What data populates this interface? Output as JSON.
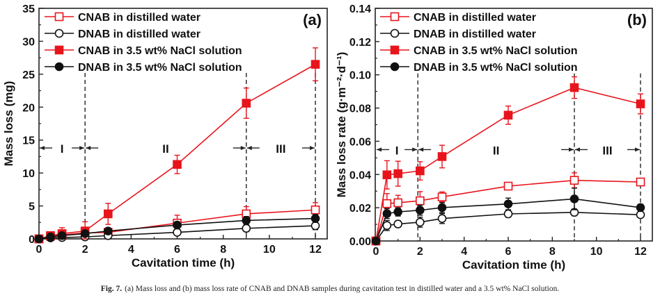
{
  "caption": {
    "label": "Fig. 7.",
    "text": "(a) Mass loss and (b) mass loss rate of CNAB and DNAB samples during cavitation test in distilled water and a 3.5 wt% NaCl solution."
  },
  "colors": {
    "red": "#e8141c",
    "black": "#111111"
  },
  "chart_data": [
    {
      "type": "line",
      "panel_label": "(a)",
      "xlabel": "Cavitation time (h)",
      "ylabel": "Mass loss (mg)",
      "xlim": [
        0,
        12.5
      ],
      "ylim": [
        0,
        35
      ],
      "xticks": [
        0,
        2,
        4,
        6,
        8,
        10,
        12
      ],
      "yticks": [
        0,
        5,
        10,
        15,
        20,
        25,
        30,
        35
      ],
      "ytick_labels": [
        "0",
        "5",
        "10",
        "15",
        "20",
        "25",
        "30",
        "35"
      ],
      "grid": false,
      "legend_position": "top-left",
      "stage_lines_x": [
        2,
        9,
        12
      ],
      "stages": [
        {
          "label": "I",
          "from": 0,
          "to": 2
        },
        {
          "label": "II",
          "from": 2,
          "to": 9
        },
        {
          "label": "III",
          "from": 9,
          "to": 12
        }
      ],
      "stage_arrow_y": 13.8,
      "series": [
        {
          "name": "CNAB in distilled water",
          "color": "#e8141c",
          "marker": "square-open",
          "x": [
            0,
            0.5,
            1,
            2,
            3,
            6,
            9,
            12
          ],
          "y": [
            0,
            0.4,
            0.6,
            0.9,
            1.0,
            2.4,
            3.8,
            4.4
          ],
          "err": [
            0,
            0.3,
            0.4,
            0.5,
            0.4,
            1.2,
            1.1,
            1.1
          ]
        },
        {
          "name": "DNAB in distilled water",
          "color": "#111111",
          "marker": "circle-open",
          "x": [
            0,
            0.5,
            1,
            2,
            3,
            6,
            9,
            12
          ],
          "y": [
            0,
            0.15,
            0.2,
            0.3,
            0.5,
            1.0,
            1.6,
            2.0
          ],
          "err": [
            0,
            0.1,
            0.1,
            0.2,
            0.2,
            0.3,
            0.5,
            0.6
          ]
        },
        {
          "name": "CNAB in 3.5 wt% NaCl solution",
          "color": "#e8141c",
          "marker": "square-filled",
          "x": [
            0,
            0.5,
            1,
            2,
            3,
            6,
            9,
            12
          ],
          "y": [
            0,
            0.5,
            0.8,
            1.2,
            3.8,
            11.3,
            20.6,
            26.5
          ],
          "err": [
            0,
            0.3,
            0.9,
            1.4,
            1.6,
            1.4,
            2.3,
            2.5
          ]
        },
        {
          "name": "DNAB in 3.5 wt% NaCl solution",
          "color": "#111111",
          "marker": "circle-filled",
          "x": [
            0,
            0.5,
            1,
            2,
            3,
            6,
            9,
            12
          ],
          "y": [
            0,
            0.3,
            0.5,
            0.8,
            1.2,
            2.1,
            2.8,
            3.1
          ],
          "err": [
            0,
            0.2,
            0.2,
            0.3,
            0.3,
            0.5,
            0.6,
            0.6
          ]
        }
      ]
    },
    {
      "type": "line",
      "panel_label": "(b)",
      "xlabel": "Cavitation time (h)",
      "ylabel": "Mass loss rate (g·m⁻²·d⁻¹)",
      "xlim": [
        0,
        12.5
      ],
      "ylim": [
        0,
        0.14
      ],
      "xticks": [
        0,
        2,
        4,
        6,
        8,
        10,
        12
      ],
      "yticks": [
        0,
        0.02,
        0.04,
        0.06,
        0.08,
        0.1,
        0.12,
        0.14
      ],
      "ytick_labels": [
        "0.00",
        "0.02",
        "0.04",
        "0.06",
        "0.08",
        "0.10",
        "0.12",
        "0.14"
      ],
      "grid": false,
      "legend_position": "top-left",
      "stage_lines_x": [
        1.9,
        9,
        12
      ],
      "stages": [
        {
          "label": "I",
          "from": 0,
          "to": 1.9
        },
        {
          "label": "II",
          "from": 1.9,
          "to": 9
        },
        {
          "label": "III",
          "from": 9,
          "to": 12
        }
      ],
      "stage_arrow_y": 0.055,
      "series": [
        {
          "name": "CNAB in distilled water",
          "color": "#e8141c",
          "marker": "square-open",
          "x": [
            0,
            0.5,
            1,
            2,
            3,
            6,
            9,
            12
          ],
          "y": [
            0,
            0.0225,
            0.023,
            0.0242,
            0.0265,
            0.033,
            0.0365,
            0.0355
          ],
          "err": [
            0,
            0.006,
            0.0045,
            0.0055,
            0.003,
            0.001,
            0.0045,
            0.001
          ]
        },
        {
          "name": "DNAB in distilled water",
          "color": "#111111",
          "marker": "circle-open",
          "x": [
            0,
            0.5,
            1,
            2,
            3,
            6,
            9,
            12
          ],
          "y": [
            0,
            0.0093,
            0.0102,
            0.0113,
            0.0135,
            0.0163,
            0.0172,
            0.0158
          ],
          "err": [
            0,
            0.003,
            0.002,
            0.003,
            0.003,
            0.002,
            0.002,
            0.001
          ]
        },
        {
          "name": "CNAB in 3.5 wt% NaCl solution",
          "color": "#e8141c",
          "marker": "square-filled",
          "x": [
            0,
            0.5,
            1,
            2,
            3,
            6,
            9,
            12
          ],
          "y": [
            0,
            0.0398,
            0.0405,
            0.0422,
            0.0508,
            0.0757,
            0.0923,
            0.0825
          ],
          "err": [
            0,
            0.0085,
            0.0075,
            0.0055,
            0.0068,
            0.0055,
            0.0065,
            0.006
          ]
        },
        {
          "name": "DNAB in 3.5 wt% NaCl solution",
          "color": "#111111",
          "marker": "circle-filled",
          "x": [
            0,
            0.5,
            1,
            2,
            3,
            6,
            9,
            12
          ],
          "y": [
            0,
            0.0165,
            0.0175,
            0.0185,
            0.0201,
            0.0223,
            0.0253,
            0.0201
          ],
          "err": [
            0,
            0.003,
            0.0025,
            0.003,
            0.003,
            0.0035,
            0.0065,
            0.002
          ]
        }
      ]
    }
  ]
}
